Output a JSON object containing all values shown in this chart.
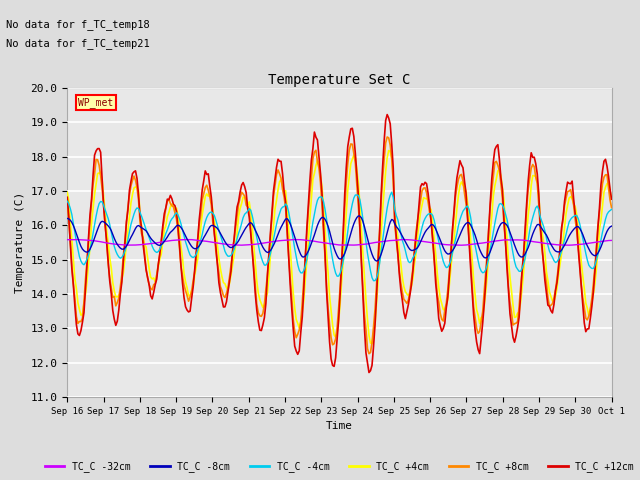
{
  "title": "Temperature Set C",
  "ylabel": "Temperature (C)",
  "xlabel": "Time",
  "ylim": [
    11.0,
    20.0
  ],
  "yticks": [
    11.0,
    12.0,
    13.0,
    14.0,
    15.0,
    16.0,
    17.0,
    18.0,
    19.0,
    20.0
  ],
  "annotations": [
    "No data for f_TC_temp18",
    "No data for f_TC_temp21"
  ],
  "wp_met_label": "WP_met",
  "legend_labels": [
    "TC_C -32cm",
    "TC_C -8cm",
    "TC_C -4cm",
    "TC_C +4cm",
    "TC_C +8cm",
    "TC_C +12cm"
  ],
  "legend_colors": [
    "#cc00ff",
    "#0000bb",
    "#00ccee",
    "#ffff00",
    "#ff8800",
    "#dd0000"
  ],
  "bg_color": "#dddddd",
  "plot_bg_color": "#e8e8e8",
  "figsize": [
    6.4,
    4.8
  ],
  "dpi": 100
}
